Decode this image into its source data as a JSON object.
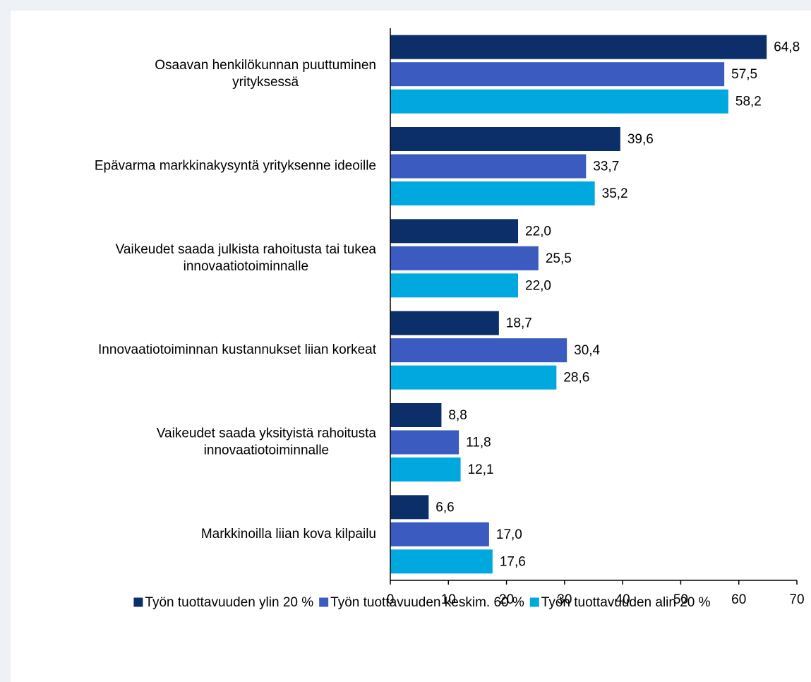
{
  "chart_data": {
    "type": "hbar",
    "categories": [
      [
        "Osaavan henkilökunnan puuttuminen",
        "yrityksessä"
      ],
      [
        "Epävarma markkinakysyntä yrityksenne ideoille"
      ],
      [
        "Vaikeudet saada julkista rahoitusta tai tukea",
        "innovaatiotoiminnalle"
      ],
      [
        "Innovaatiotoiminnan kustannukset liian korkeat"
      ],
      [
        "Vaikeudet saada yksityistä rahoitusta",
        "innovaatiotoiminnalle"
      ],
      [
        "Markkinoilla liian kova kilpailu"
      ]
    ],
    "series": [
      {
        "name": "Työn tuottavuuden ylin 20 %",
        "color": "#0c2f6a",
        "values": [
          64.8,
          39.6,
          22.0,
          18.7,
          8.8,
          6.6
        ],
        "value_labels": [
          "64,8",
          "39,6",
          "22,0",
          "18,7",
          "8,8",
          "6,6"
        ]
      },
      {
        "name": "Työn tuottavuuden keskim. 60 %",
        "color": "#3b5bc0",
        "values": [
          57.5,
          33.7,
          25.5,
          30.4,
          11.8,
          17.0
        ],
        "value_labels": [
          "57,5",
          "33,7",
          "25,5",
          "30,4",
          "11,8",
          "17,0"
        ]
      },
      {
        "name": "Työn tuottavuuden alin 20 %",
        "color": "#00a8e0",
        "values": [
          58.2,
          35.2,
          22.0,
          28.6,
          12.1,
          17.6
        ],
        "value_labels": [
          "58,2",
          "35,2",
          "22,0",
          "28,6",
          "12,1",
          "17,6"
        ]
      }
    ],
    "xlim": [
      0,
      70
    ],
    "xticks": [
      0,
      10,
      20,
      30,
      40,
      50,
      60,
      70
    ],
    "legend": "bottom"
  }
}
